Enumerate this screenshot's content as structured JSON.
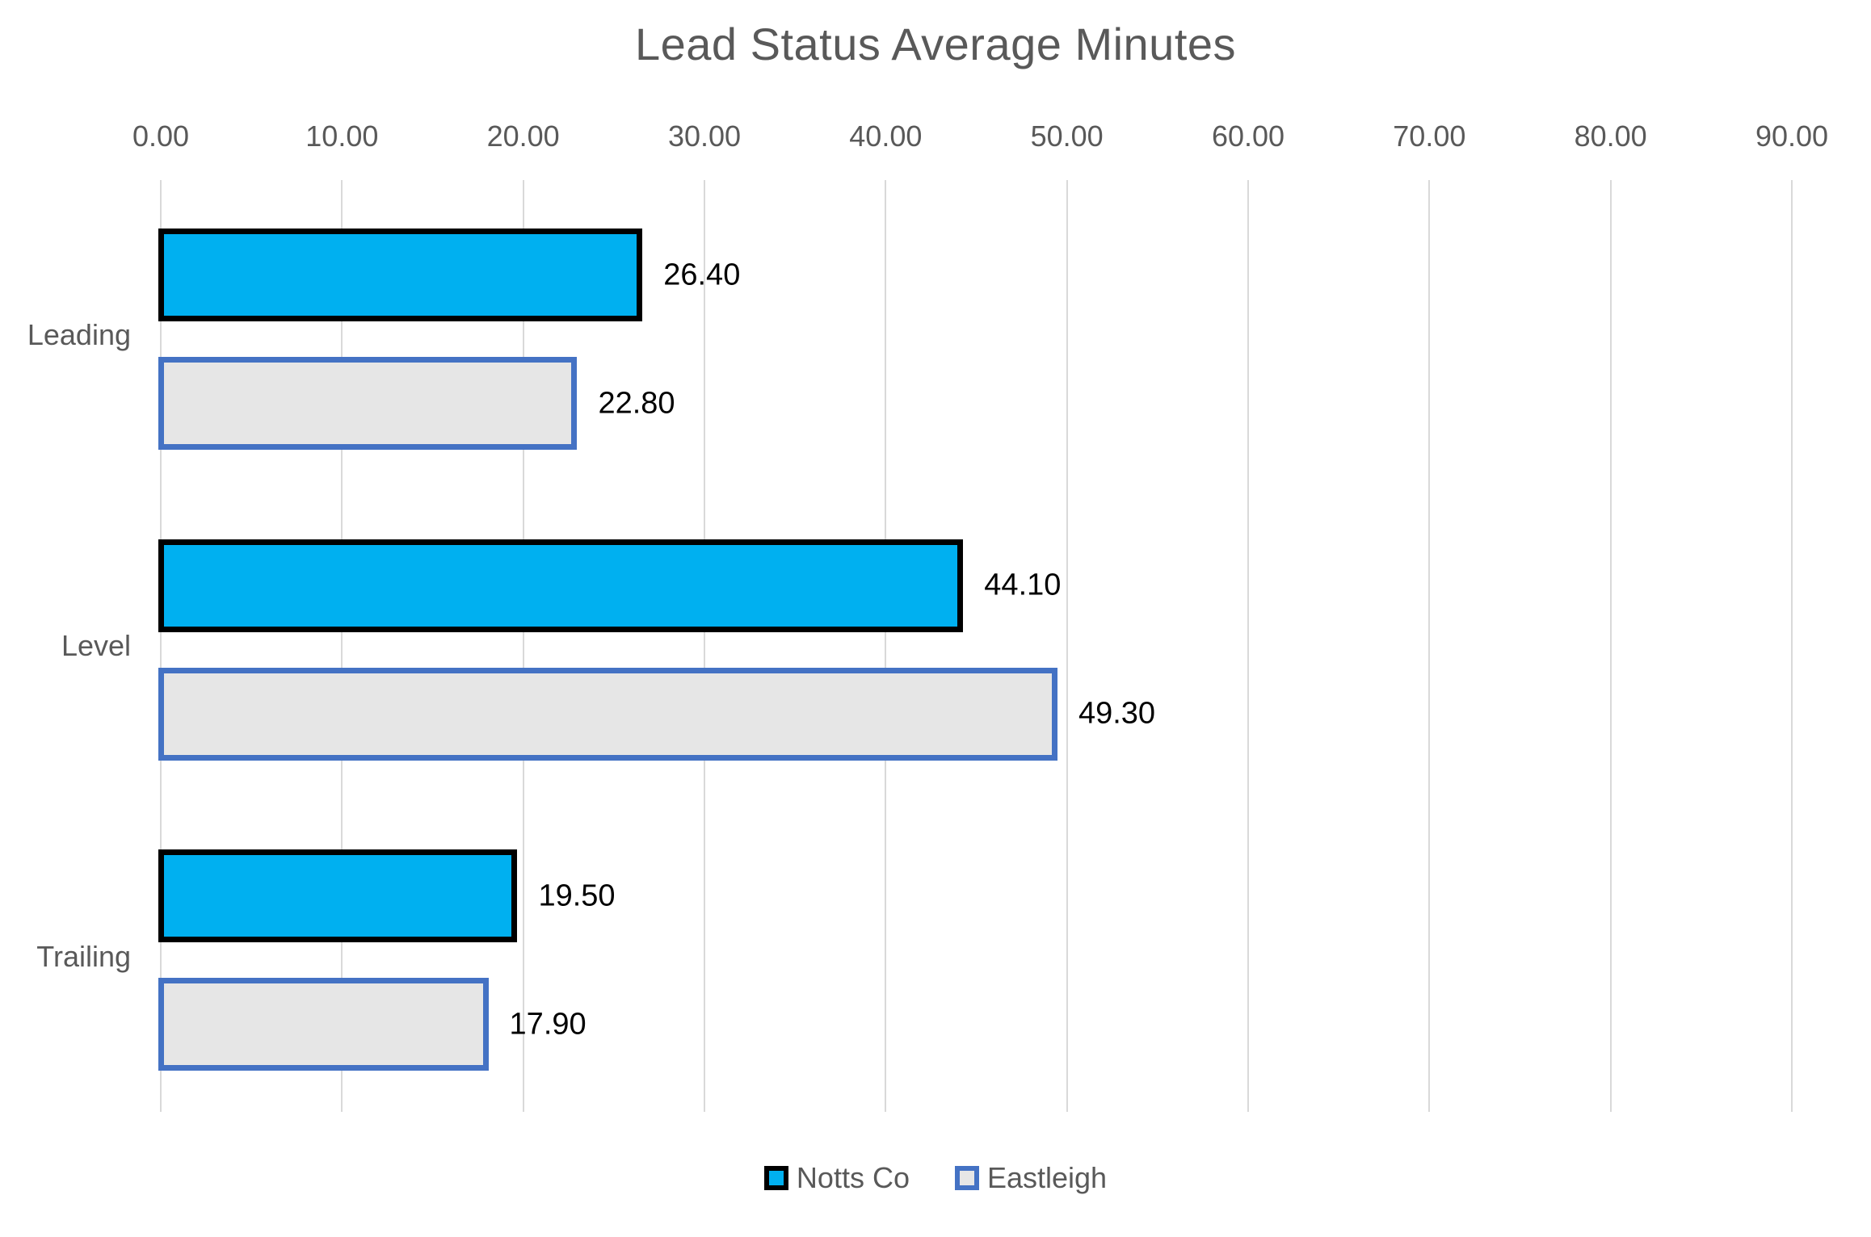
{
  "title": "Lead Status Average Minutes",
  "chart_data": {
    "type": "bar",
    "orientation": "horizontal",
    "title": "Lead Status Average Minutes",
    "categories": [
      "Leading",
      "Level",
      "Trailing"
    ],
    "series": [
      {
        "name": "Notts Co",
        "values": [
          26.4,
          44.1,
          19.5
        ],
        "labels": [
          "26.40",
          "44.10",
          "19.50"
        ],
        "fill": "#00B0F0",
        "border": "#000000"
      },
      {
        "name": "Eastleigh",
        "values": [
          22.8,
          49.3,
          17.9
        ],
        "labels": [
          "22.80",
          "49.30",
          "17.90"
        ],
        "fill": "#E6E6E6",
        "border": "#4472C4"
      }
    ],
    "xlim": [
      0,
      90
    ],
    "tick_step": 10,
    "x_ticks": [
      "0.00",
      "10.00",
      "20.00",
      "30.00",
      "40.00",
      "50.00",
      "60.00",
      "70.00",
      "80.00",
      "90.00"
    ],
    "x_axis_position": "top",
    "grid": true,
    "gridline_color": "#D9D9D9",
    "legend_position": "bottom",
    "text_color": "#595959",
    "value_label_color": "#000000"
  }
}
